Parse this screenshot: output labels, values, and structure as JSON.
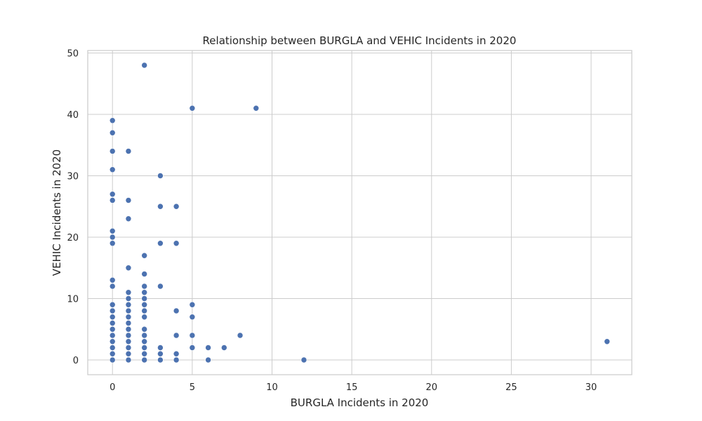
{
  "chart_data": {
    "type": "scatter",
    "title": "Relationship between BURGLA and VEHIC Incidents in 2020",
    "xlabel": "BURGLA Incidents in 2020",
    "ylabel": "VEHIC Incidents in 2020",
    "xlim": [
      -1.55,
      32.55
    ],
    "ylim": [
      -2.4,
      50.4
    ],
    "xticks": [
      0,
      5,
      10,
      15,
      20,
      25,
      30
    ],
    "yticks": [
      0,
      10,
      20,
      30,
      40,
      50
    ],
    "grid": true,
    "legend": "none",
    "marker_color": "#4c72b0",
    "points": [
      {
        "x": 0,
        "y": 0
      },
      {
        "x": 0,
        "y": 1
      },
      {
        "x": 0,
        "y": 2
      },
      {
        "x": 0,
        "y": 3
      },
      {
        "x": 0,
        "y": 4
      },
      {
        "x": 0,
        "y": 5
      },
      {
        "x": 0,
        "y": 6
      },
      {
        "x": 0,
        "y": 7
      },
      {
        "x": 0,
        "y": 8
      },
      {
        "x": 0,
        "y": 9
      },
      {
        "x": 0,
        "y": 12
      },
      {
        "x": 0,
        "y": 13
      },
      {
        "x": 0,
        "y": 19
      },
      {
        "x": 0,
        "y": 20
      },
      {
        "x": 0,
        "y": 21
      },
      {
        "x": 0,
        "y": 26
      },
      {
        "x": 0,
        "y": 27
      },
      {
        "x": 0,
        "y": 31
      },
      {
        "x": 0,
        "y": 34
      },
      {
        "x": 0,
        "y": 37
      },
      {
        "x": 0,
        "y": 39
      },
      {
        "x": 1,
        "y": 0
      },
      {
        "x": 1,
        "y": 1
      },
      {
        "x": 1,
        "y": 2
      },
      {
        "x": 1,
        "y": 3
      },
      {
        "x": 1,
        "y": 4
      },
      {
        "x": 1,
        "y": 5
      },
      {
        "x": 1,
        "y": 6
      },
      {
        "x": 1,
        "y": 7
      },
      {
        "x": 1,
        "y": 8
      },
      {
        "x": 1,
        "y": 9
      },
      {
        "x": 1,
        "y": 10
      },
      {
        "x": 1,
        "y": 11
      },
      {
        "x": 1,
        "y": 15
      },
      {
        "x": 1,
        "y": 23
      },
      {
        "x": 1,
        "y": 26
      },
      {
        "x": 1,
        "y": 34
      },
      {
        "x": 2,
        "y": 0
      },
      {
        "x": 2,
        "y": 1
      },
      {
        "x": 2,
        "y": 2
      },
      {
        "x": 2,
        "y": 3
      },
      {
        "x": 2,
        "y": 4
      },
      {
        "x": 2,
        "y": 5
      },
      {
        "x": 2,
        "y": 7
      },
      {
        "x": 2,
        "y": 8
      },
      {
        "x": 2,
        "y": 9
      },
      {
        "x": 2,
        "y": 10
      },
      {
        "x": 2,
        "y": 11
      },
      {
        "x": 2,
        "y": 12
      },
      {
        "x": 2,
        "y": 14
      },
      {
        "x": 2,
        "y": 17
      },
      {
        "x": 2,
        "y": 48
      },
      {
        "x": 3,
        "y": 0
      },
      {
        "x": 3,
        "y": 1
      },
      {
        "x": 3,
        "y": 2
      },
      {
        "x": 3,
        "y": 12
      },
      {
        "x": 3,
        "y": 19
      },
      {
        "x": 3,
        "y": 25
      },
      {
        "x": 3,
        "y": 30
      },
      {
        "x": 4,
        "y": 0
      },
      {
        "x": 4,
        "y": 1
      },
      {
        "x": 4,
        "y": 4
      },
      {
        "x": 4,
        "y": 8
      },
      {
        "x": 4,
        "y": 19
      },
      {
        "x": 4,
        "y": 25
      },
      {
        "x": 5,
        "y": 2
      },
      {
        "x": 5,
        "y": 4
      },
      {
        "x": 5,
        "y": 7
      },
      {
        "x": 5,
        "y": 9
      },
      {
        "x": 5,
        "y": 41
      },
      {
        "x": 6,
        "y": 0
      },
      {
        "x": 6,
        "y": 2
      },
      {
        "x": 7,
        "y": 2
      },
      {
        "x": 8,
        "y": 4
      },
      {
        "x": 9,
        "y": 41
      },
      {
        "x": 12,
        "y": 0
      },
      {
        "x": 31,
        "y": 3
      }
    ]
  }
}
